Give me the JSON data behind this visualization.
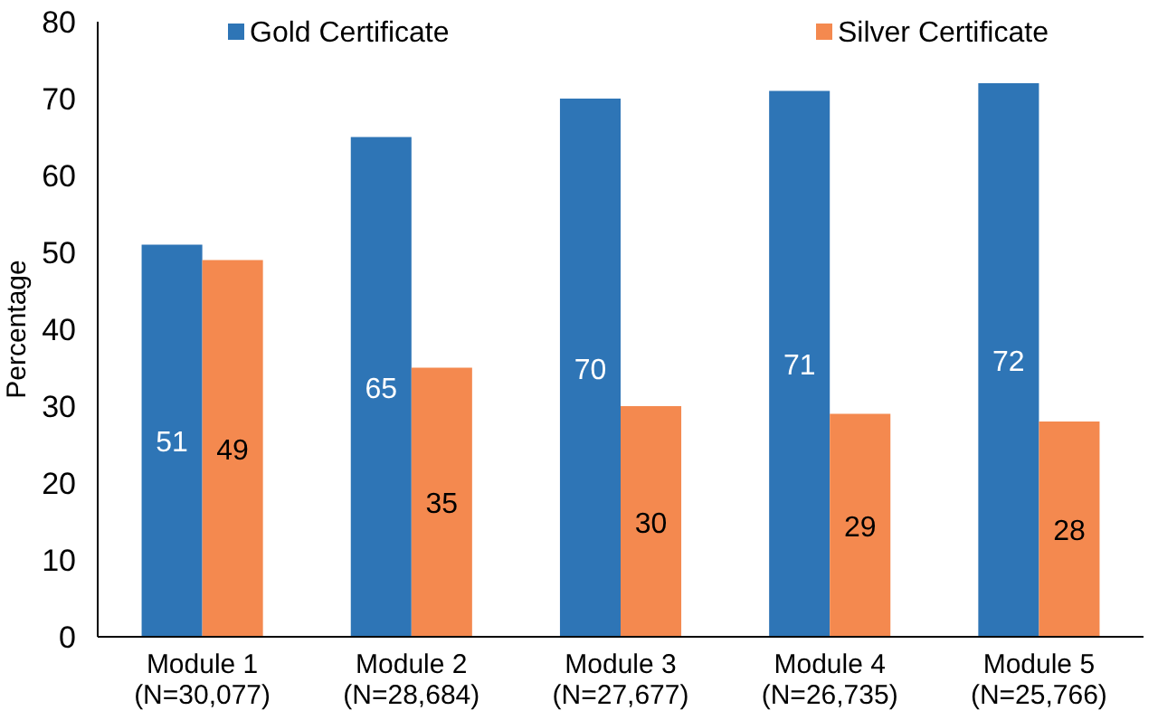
{
  "chart_data": {
    "type": "bar",
    "ylabel": "Percentage",
    "categories": [
      "Module 1\n(N=30,077)",
      "Module 2\n(N=28,684)",
      "Module 3\n(N=27,677)",
      "Module 4\n(N=26,735)",
      "Module 5\n(N=25,766)"
    ],
    "series": [
      {
        "name": "Gold Certificate",
        "color": "#2e75b6",
        "values": [
          51,
          65,
          70,
          71,
          72
        ]
      },
      {
        "name": "Silver Certificate",
        "color": "#f4894f",
        "values": [
          49,
          35,
          30,
          29,
          28
        ]
      }
    ],
    "ylim": [
      0,
      80
    ],
    "yticks": [
      0,
      10,
      20,
      30,
      40,
      50,
      60,
      70,
      80
    ],
    "data_labels": true,
    "legend": "top",
    "grid": false
  }
}
